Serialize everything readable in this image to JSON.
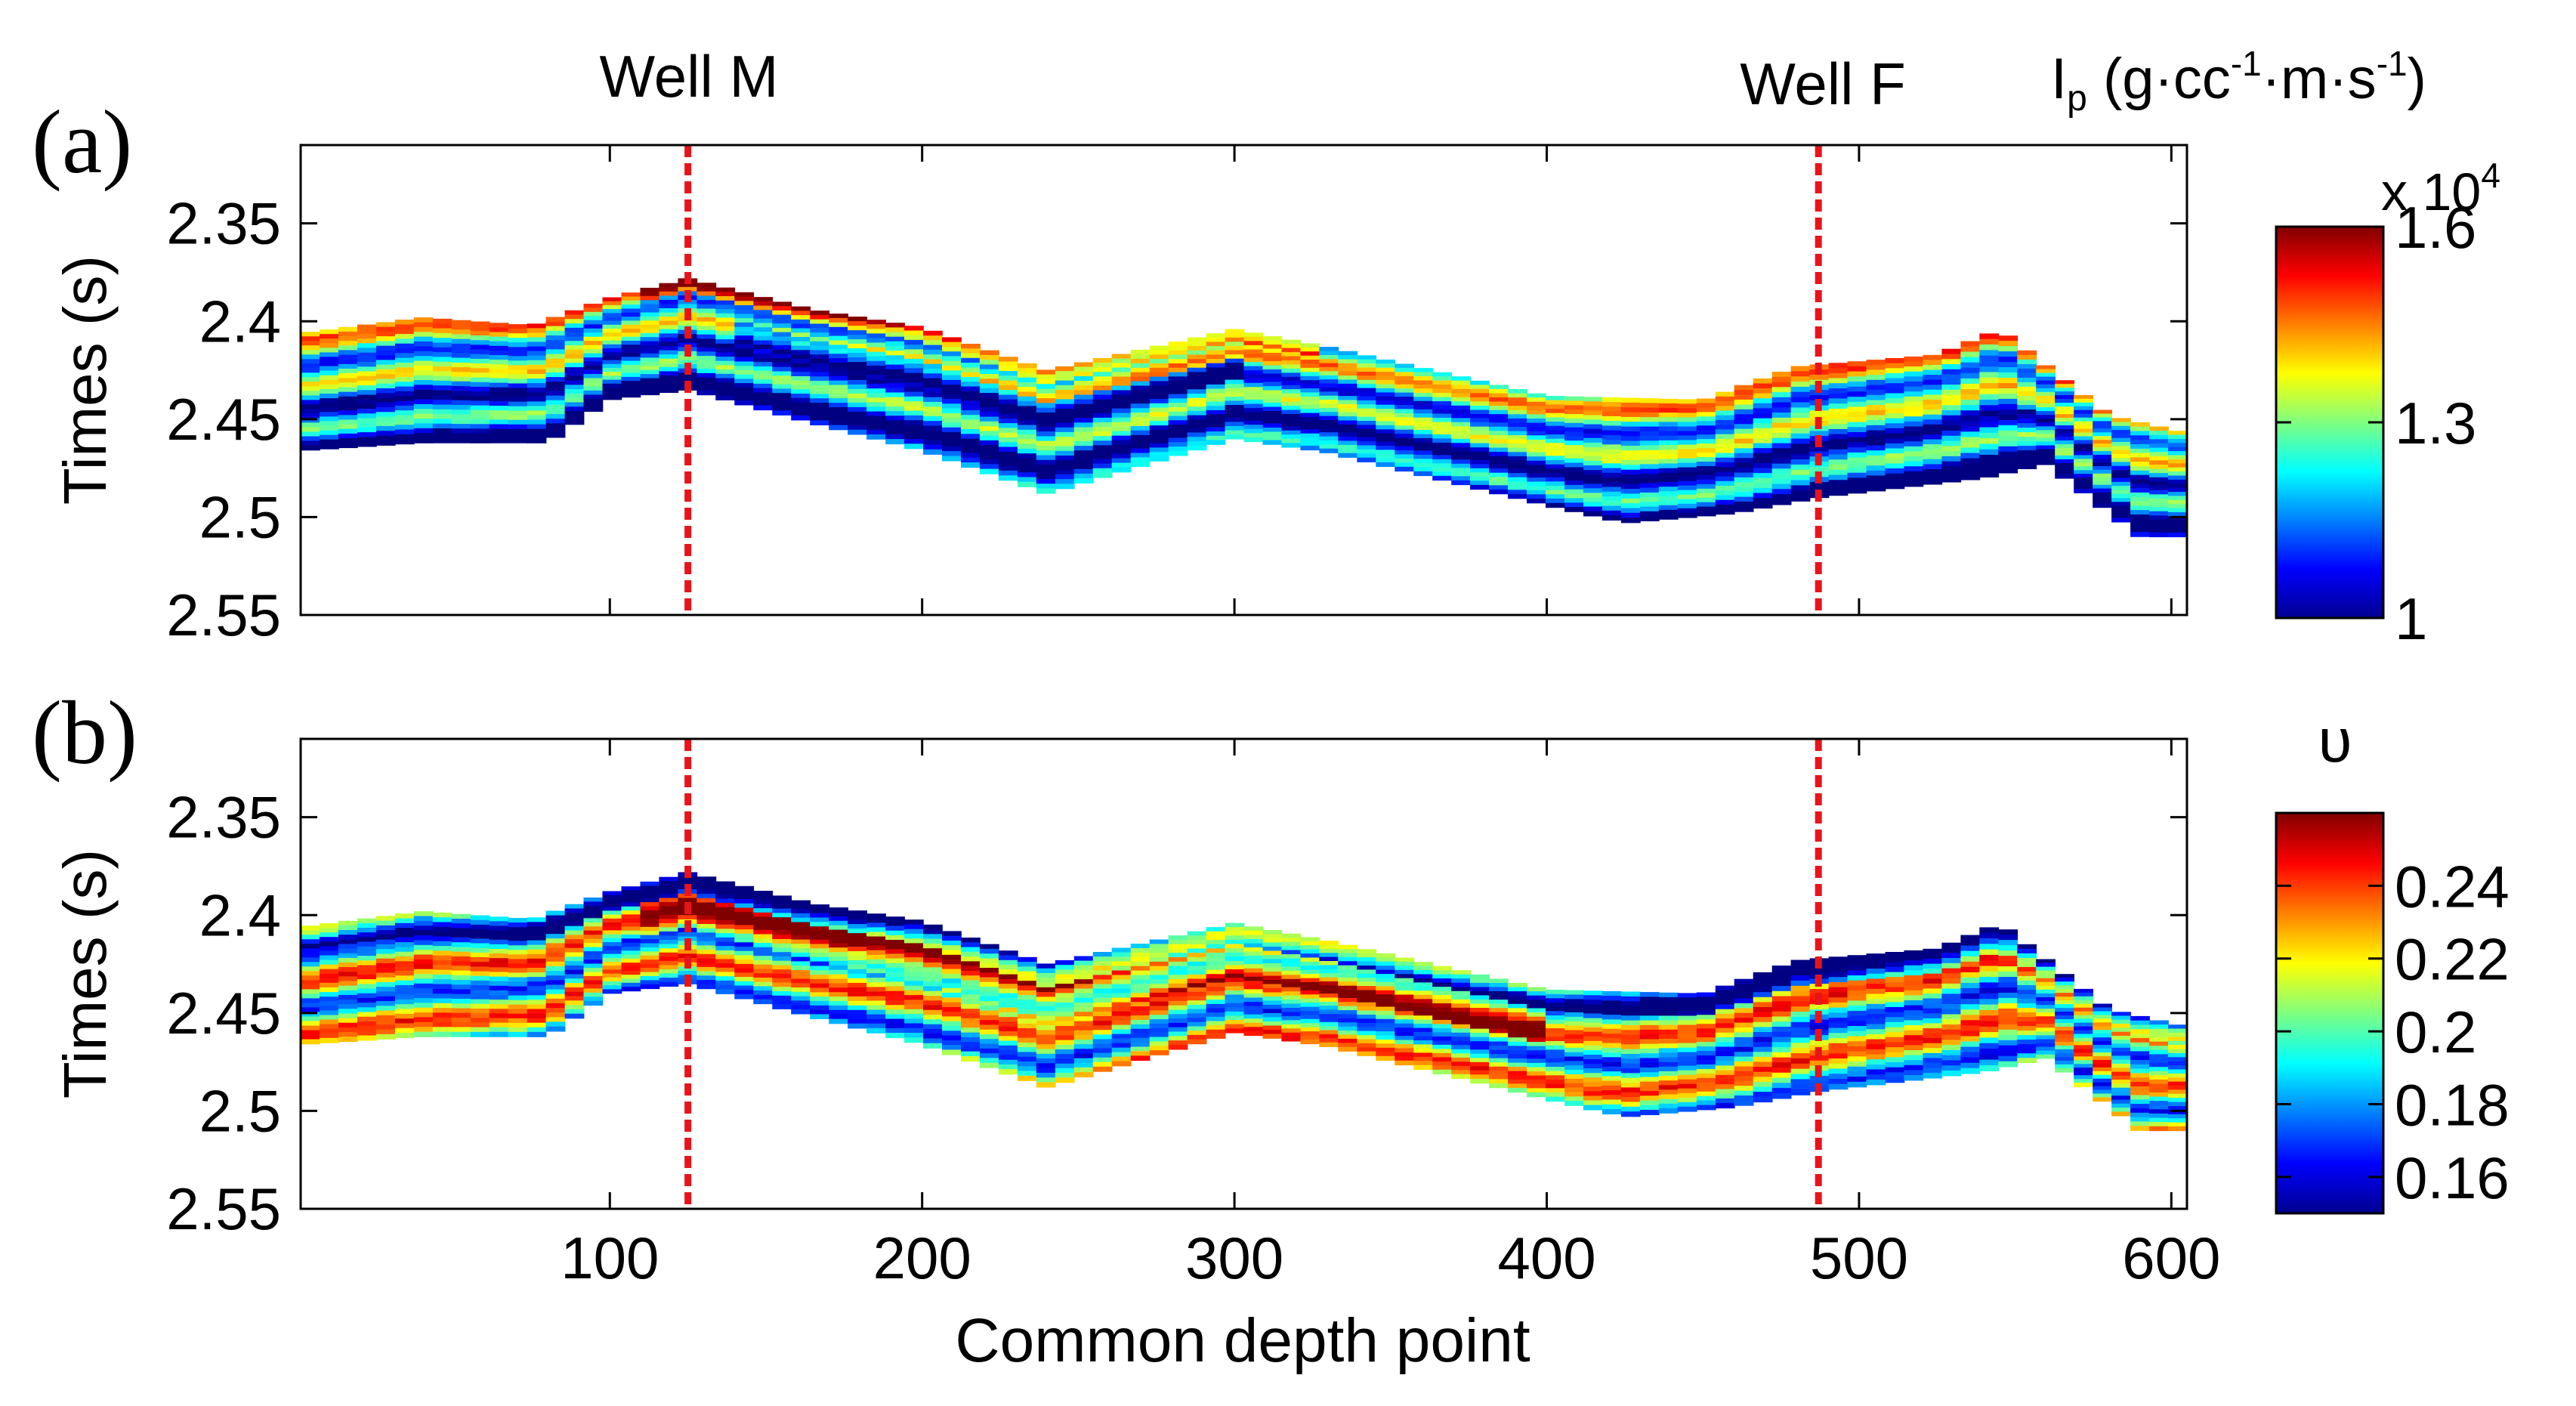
{
  "figure": {
    "wells": [
      {
        "label": "Well M",
        "cdp": 125,
        "color": "#e8141a"
      },
      {
        "label": "Well F",
        "cdp": 487,
        "color": "#e8141a"
      }
    ],
    "xlabel": "Common depth point",
    "x_ticks": [
      100,
      200,
      300,
      400,
      500,
      600
    ],
    "xlim": [
      1,
      605
    ]
  },
  "chart_data": [
    {
      "type": "heatmap",
      "panel_label": "(a)",
      "ylabel": "Times (s)",
      "xlabel": "Common depth point",
      "xlim": [
        1,
        605
      ],
      "ylim": [
        2.31,
        2.55
      ],
      "y_reversed": true,
      "y_ticks": [
        2.35,
        2.4,
        2.45,
        2.5,
        2.55
      ],
      "y_tick_labels": [
        "2.35",
        "2.4",
        "2.45",
        "2.5",
        "2.55"
      ],
      "x_tick_labels_shown": false,
      "property": "P-impedance",
      "colorbar": {
        "title_main": "I",
        "title_sub": "p",
        "title_units_a": "(g·cc",
        "title_exp1": "-1",
        "title_units_b": "·m·s",
        "title_exp2": "-1",
        "title_units_c": ")",
        "exponent_label": "x 10",
        "exponent_power": "4",
        "range": [
          1.0,
          1.6
        ],
        "ticks": [
          1,
          1.3,
          1.6
        ],
        "tick_labels": [
          "1",
          "1.3",
          "1.6"
        ]
      },
      "layer_top_trace": {
        "cdp": [
          1,
          40,
          75,
          100,
          125,
          165,
          200,
          240,
          300,
          330,
          400,
          450,
          480,
          525,
          545,
          580,
          605
        ],
        "time_s": [
          2.406,
          2.398,
          2.402,
          2.388,
          2.378,
          2.394,
          2.403,
          2.425,
          2.404,
          2.413,
          2.438,
          2.44,
          2.423,
          2.417,
          2.404,
          2.448,
          2.457
        ]
      },
      "layer_bottom_trace": {
        "cdp": [
          1,
          40,
          80,
          100,
          125,
          165,
          200,
          240,
          300,
          330,
          400,
          425,
          460,
          487,
          540,
          560,
          590,
          605
        ],
        "time_s": [
          2.466,
          2.462,
          2.462,
          2.44,
          2.435,
          2.452,
          2.466,
          2.488,
          2.46,
          2.467,
          2.494,
          2.503,
          2.498,
          2.49,
          2.48,
          2.473,
          2.51,
          2.51
        ]
      }
    },
    {
      "type": "heatmap",
      "panel_label": "(b)",
      "ylabel": "Times (s)",
      "xlabel": "Common depth point",
      "xlim": [
        1,
        605
      ],
      "ylim": [
        2.31,
        2.55
      ],
      "y_reversed": true,
      "y_ticks": [
        2.35,
        2.4,
        2.45,
        2.5,
        2.55
      ],
      "y_tick_labels": [
        "2.35",
        "2.4",
        "2.45",
        "2.5",
        "2.55"
      ],
      "x_tick_labels_shown": true,
      "property": "Poisson's ratio",
      "colorbar": {
        "title_main": "υ",
        "range": [
          0.15,
          0.26
        ],
        "ticks": [
          0.16,
          0.18,
          0.2,
          0.22,
          0.24
        ],
        "tick_labels": [
          "0.16",
          "0.18",
          "0.2",
          "0.22",
          "0.24"
        ]
      },
      "layer_top_trace": {
        "cdp": [
          1,
          40,
          75,
          100,
          125,
          165,
          200,
          240,
          300,
          330,
          400,
          450,
          480,
          525,
          545,
          580,
          605
        ],
        "time_s": [
          2.406,
          2.398,
          2.402,
          2.388,
          2.378,
          2.394,
          2.403,
          2.425,
          2.404,
          2.413,
          2.438,
          2.44,
          2.423,
          2.417,
          2.404,
          2.448,
          2.457
        ]
      },
      "layer_bottom_trace": {
        "cdp": [
          1,
          40,
          80,
          100,
          125,
          165,
          200,
          240,
          300,
          330,
          400,
          425,
          460,
          487,
          540,
          560,
          590,
          605
        ],
        "time_s": [
          2.466,
          2.462,
          2.462,
          2.44,
          2.435,
          2.452,
          2.466,
          2.488,
          2.46,
          2.467,
          2.494,
          2.503,
          2.498,
          2.49,
          2.48,
          2.473,
          2.51,
          2.51
        ]
      }
    }
  ]
}
